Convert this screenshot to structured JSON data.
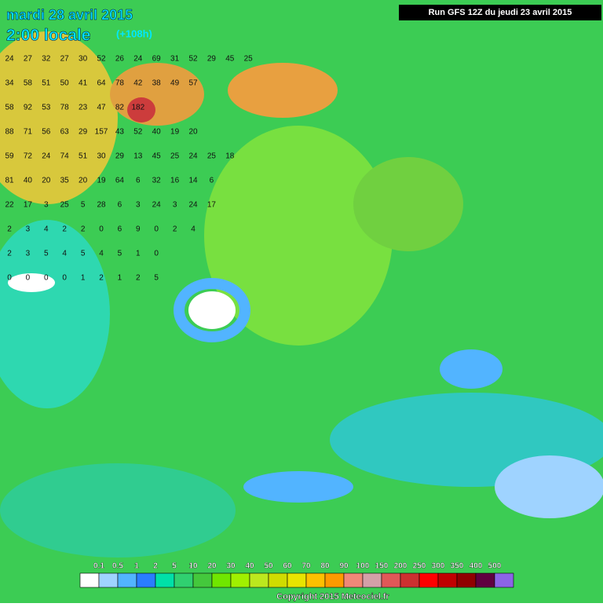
{
  "header": {
    "date": "mardi 28 avril 2015",
    "time": "2:00 locale",
    "lead": "(+108h)",
    "run": "Run GFS 12Z du jeudi 23 avril 2015"
  },
  "legend": {
    "labels": [
      "0.1",
      "0.5",
      "1",
      "2",
      "5",
      "10",
      "20",
      "30",
      "40",
      "50",
      "60",
      "70",
      "80",
      "90",
      "100",
      "150",
      "200",
      "250",
      "300",
      "350",
      "400",
      "500"
    ],
    "colors": [
      "#ffffff",
      "#9fd3ff",
      "#52b4ff",
      "#2a7dff",
      "#00e0a8",
      "#30d070",
      "#44c83c",
      "#70e600",
      "#a0f000",
      "#bce81e",
      "#d0dc00",
      "#e8e400",
      "#ffc000",
      "#ff9a00",
      "#f08878",
      "#d4a0a8",
      "#e05858",
      "#cc3030",
      "#ff0000",
      "#c00000",
      "#900000",
      "#600040",
      "#8c64e6"
    ]
  },
  "grid_rows": [
    [
      24,
      27,
      32,
      27,
      30,
      52,
      26,
      24,
      69,
      31,
      52,
      29,
      45,
      25
    ],
    [
      34,
      58,
      51,
      50,
      41,
      64,
      78,
      42,
      38,
      49,
      57
    ],
    [
      58,
      92,
      53,
      78,
      23,
      47,
      82,
      182
    ],
    [
      88,
      71,
      56,
      63,
      29,
      157,
      43,
      52,
      40,
      19,
      20
    ],
    [
      59,
      72,
      24,
      74,
      51,
      30,
      29,
      13,
      45,
      25,
      24,
      25,
      18
    ],
    [
      81,
      40,
      20,
      35,
      20,
      19,
      64,
      6,
      32,
      16,
      14,
      6
    ],
    [
      22,
      17,
      3,
      25,
      5,
      28,
      6,
      3,
      24,
      3,
      24,
      17
    ],
    [
      2,
      3,
      4,
      2,
      2,
      0,
      6,
      9,
      0,
      2,
      4
    ],
    [
      2,
      3,
      5,
      4,
      5,
      4,
      5,
      1,
      0
    ],
    [
      0,
      0,
      0,
      0,
      1,
      2,
      1,
      2,
      5
    ]
  ],
  "copyright": "Copyright 2015 Meteociel.fr"
}
